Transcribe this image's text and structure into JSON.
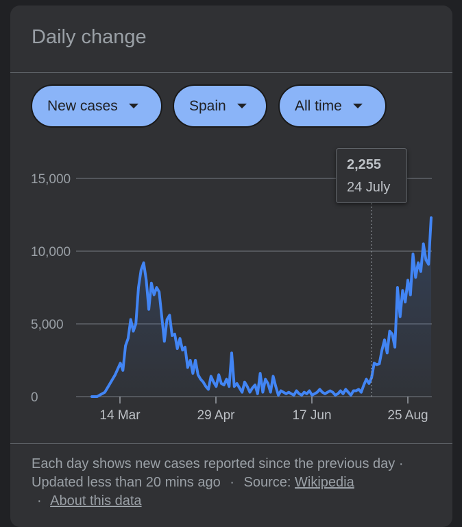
{
  "card": {
    "title": "Daily change",
    "filters": [
      {
        "label": "New cases"
      },
      {
        "label": "Spain"
      },
      {
        "label": "All time"
      }
    ]
  },
  "tooltip": {
    "value": "2,255",
    "date": "24 July"
  },
  "footer": {
    "text": "Each day shows new cases reported since the previous day · Updated less than 20 mins ago",
    "source_label": "Source:",
    "source_link": "Wikipedia",
    "about_link": "About this data",
    "separator": "·"
  },
  "colors": {
    "line": "#4285f4",
    "chip": "#8ab4f8",
    "background": "#303134"
  },
  "chart_data": {
    "type": "area",
    "title": "",
    "xlabel": "",
    "ylabel": "",
    "ylim": [
      0,
      15000
    ],
    "y_ticks": [
      {
        "value": 0,
        "label": "0"
      },
      {
        "value": 5000,
        "label": "5,000"
      },
      {
        "value": 10000,
        "label": "10,000"
      },
      {
        "value": 15000,
        "label": "15,000"
      }
    ],
    "x_ticks": [
      "14 Mar",
      "29 Apr",
      "17 Jun",
      "25 Aug"
    ],
    "series": [
      {
        "values": [
          0,
          0,
          0,
          100,
          200,
          300,
          600,
          900,
          1200,
          1500,
          1900,
          2300,
          1800,
          3500,
          4000,
          5300,
          4500,
          5000,
          7500,
          8700,
          9200,
          8000,
          6000,
          7800,
          7000,
          7500,
          7200,
          5500,
          3800,
          5300,
          5600,
          4200,
          4300,
          3300,
          4000,
          3200,
          3400,
          2000,
          2500,
          1600,
          2500,
          1500,
          1200,
          1000,
          700,
          500,
          1400,
          1000,
          700,
          1500,
          900,
          800,
          1200,
          700,
          3000,
          700,
          900,
          600,
          300,
          1000,
          700,
          300,
          600,
          800,
          200,
          1600,
          300,
          1200,
          900,
          300,
          1400,
          700,
          100,
          400,
          300,
          200,
          300,
          200,
          100,
          400,
          200,
          100,
          300,
          200,
          400,
          100,
          200,
          300,
          500,
          300,
          200,
          300,
          400,
          300,
          100,
          200,
          400,
          200,
          500,
          300,
          100,
          400,
          400,
          500,
          300,
          800,
          1200,
          900,
          1300,
          2300,
          2200,
          2255,
          3200,
          3900,
          3000,
          4500,
          4300,
          3400,
          7500,
          5500,
          7300,
          6500,
          8000,
          7000,
          9800,
          8200,
          9200,
          8600,
          10500,
          9400,
          9100,
          12300
        ]
      }
    ],
    "grid": true,
    "legend": "none"
  }
}
